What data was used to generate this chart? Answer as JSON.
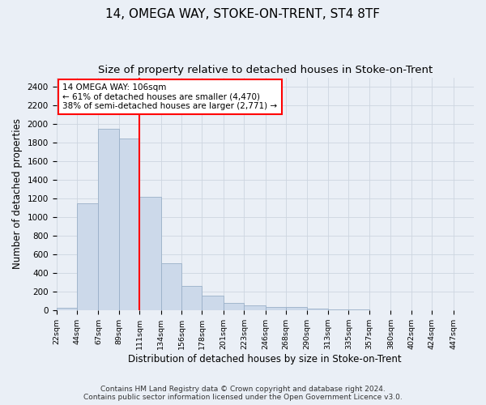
{
  "title1": "14, OMEGA WAY, STOKE-ON-TRENT, ST4 8TF",
  "title2": "Size of property relative to detached houses in Stoke-on-Trent",
  "xlabel": "Distribution of detached houses by size in Stoke-on-Trent",
  "ylabel": "Number of detached properties",
  "annotation_title": "14 OMEGA WAY: 106sqm",
  "annotation_line1": "← 61% of detached houses are smaller (4,470)",
  "annotation_line2": "38% of semi-detached houses are larger (2,771) →",
  "footer1": "Contains HM Land Registry data © Crown copyright and database right 2024.",
  "footer2": "Contains public sector information licensed under the Open Government Licence v3.0.",
  "bar_edges": [
    22,
    44,
    67,
    89,
    111,
    134,
    156,
    178,
    201,
    223,
    246,
    268,
    290,
    313,
    335,
    357,
    380,
    402,
    424,
    447,
    469
  ],
  "bar_heights": [
    25,
    1150,
    1950,
    1840,
    1220,
    510,
    265,
    155,
    80,
    55,
    35,
    35,
    20,
    10,
    8,
    5,
    3,
    3,
    3,
    3
  ],
  "bar_color": "#ccd9ea",
  "bar_edgecolor": "#9ab0c8",
  "vline_color": "red",
  "vline_x": 111,
  "annotation_box_facecolor": "white",
  "annotation_box_edgecolor": "red",
  "ylim": [
    0,
    2500
  ],
  "yticks": [
    0,
    200,
    400,
    600,
    800,
    1000,
    1200,
    1400,
    1600,
    1800,
    2000,
    2200,
    2400
  ],
  "grid_color": "#cdd5e0",
  "background_color": "#eaeff6",
  "title1_fontsize": 11,
  "title2_fontsize": 9.5,
  "footer_fontsize": 6.5,
  "ylabel_fontsize": 8.5,
  "xlabel_fontsize": 8.5
}
